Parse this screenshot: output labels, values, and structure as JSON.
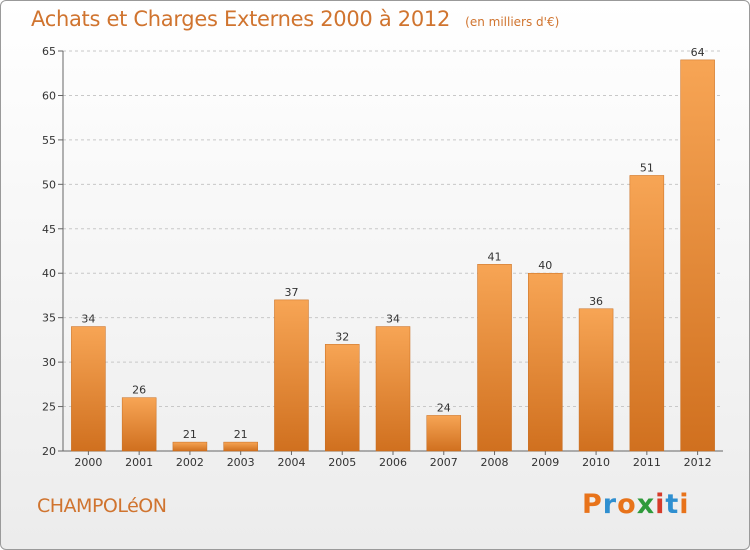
{
  "header": {
    "title": "Achats et Charges Externes 2000 à 2012",
    "unit": "(en milliers d'€)"
  },
  "footer": {
    "commune": "CHAMPOLéON",
    "logo_text": "Proxiti",
    "logo_colors": [
      "#e8731a",
      "#2f8fd0",
      "#e8731a",
      "#2f9a3b",
      "#d63b2a",
      "#2f8fd0",
      "#e8731a"
    ]
  },
  "colors": {
    "accent": "#d0742f",
    "bar_light": "#f7a555",
    "bar_dark": "#d0701f"
  },
  "chart_data": {
    "type": "bar",
    "title": "Achats et Charges Externes 2000 à 2012",
    "subtitle": "(en milliers d'€)",
    "categories": [
      "2000",
      "2001",
      "2002",
      "2003",
      "2004",
      "2005",
      "2006",
      "2007",
      "2008",
      "2009",
      "2010",
      "2011",
      "2012"
    ],
    "values": [
      34,
      26,
      21,
      21,
      37,
      32,
      34,
      24,
      41,
      40,
      36,
      51,
      64
    ],
    "ylim": [
      20,
      65
    ],
    "yticks": [
      20,
      25,
      30,
      35,
      40,
      45,
      50,
      55,
      60,
      65
    ],
    "grid": true,
    "xlabel": "",
    "ylabel": ""
  }
}
